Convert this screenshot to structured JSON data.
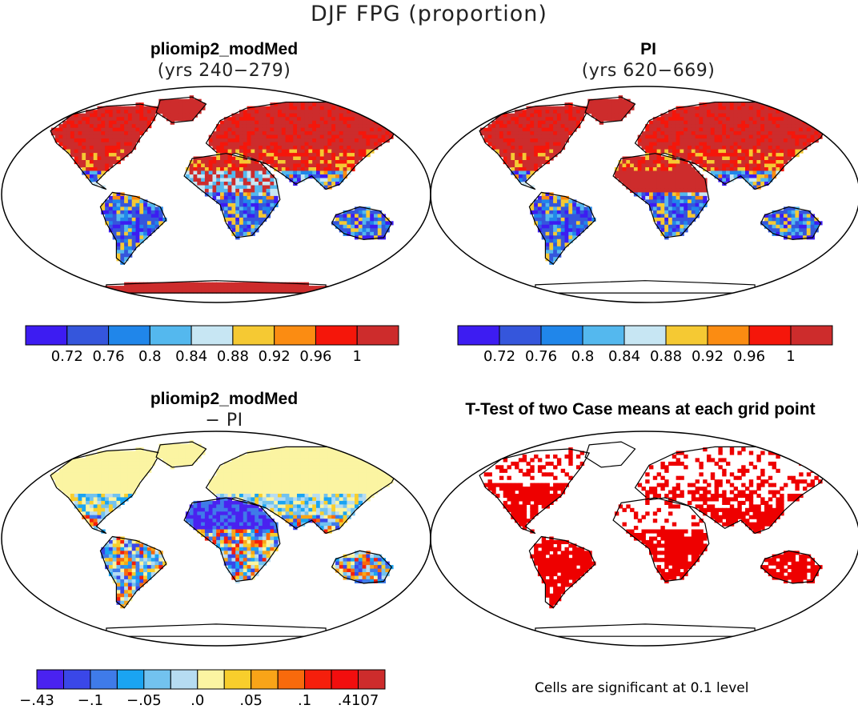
{
  "title": "DJF FPG (proportion)",
  "panels": [
    {
      "title": "pliomip2_modMed",
      "subtitle": "(yrs 240−279)"
    },
    {
      "title": "PI",
      "subtitle": "(yrs 620−669)"
    },
    {
      "title": "pliomip2_modMed",
      "subtitle": "− PI"
    },
    {
      "title": "T-Test of two Case means at each grid point",
      "subtitle": ""
    }
  ],
  "colorbars": {
    "abs": {
      "colors": [
        "#3d1cf2",
        "#3556dc",
        "#2086ea",
        "#54b8ee",
        "#c7e6f3",
        "#f5c933",
        "#fb8c12",
        "#f5160a",
        "#cd2c2c"
      ],
      "labels": [
        "0.72",
        "0.76",
        "0.8",
        "0.84",
        "0.88",
        "0.92",
        "0.96",
        "1"
      ]
    },
    "diff": {
      "colors": [
        "#4a22f0",
        "#3a47e8",
        "#3f7be9",
        "#1aa4f2",
        "#72c2ef",
        "#b6dcf2",
        "#fbf4a2",
        "#f8ce2c",
        "#f9a418",
        "#f86a0c",
        "#f51f0c",
        "#f20e0e",
        "#cd2c2c"
      ],
      "labels": [
        "−.43",
        "−.1",
        "−.05",
        ".0",
        ".05",
        ".1",
        ".4107"
      ],
      "label_boundaries": [
        0,
        2,
        4,
        6,
        8,
        10,
        12
      ]
    }
  },
  "significance_color": "#ee0000",
  "footnote": "Cells are significant at 0.1 level"
}
